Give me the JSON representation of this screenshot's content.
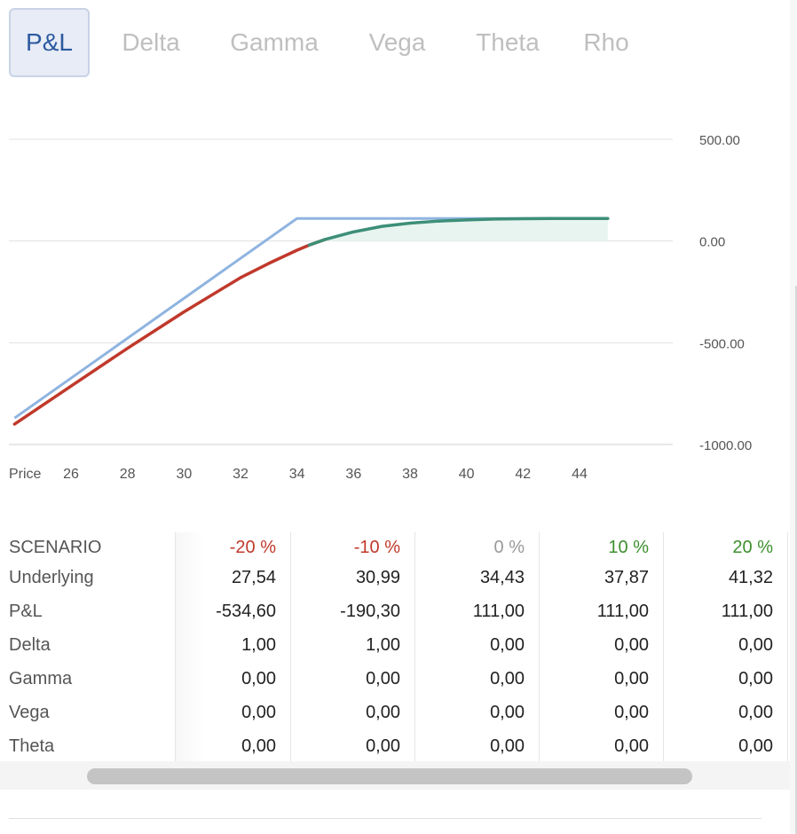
{
  "tabs": [
    "P&L",
    "Delta",
    "Gamma",
    "Vega",
    "Theta",
    "Rho"
  ],
  "active_tab": "P&L",
  "colors": {
    "tab_active_text": "#2c5aa0",
    "expiry_line": "#8fb4e0",
    "curve_negative": "#c0392b",
    "curve_positive": "#3d8f78",
    "fill_positive": "#e8f4ef",
    "grid": "#e0e0e0",
    "neg_pct": "#c0392b",
    "zero_pct": "#999999",
    "pos_pct": "#3d8f2e"
  },
  "chart_data": {
    "type": "line",
    "xlabel": "Price",
    "x_ticks": [
      26,
      28,
      30,
      32,
      34,
      36,
      38,
      40,
      42,
      44
    ],
    "y_ticks": [
      "500.00",
      "0.00",
      "-500.00",
      "-1000.00"
    ],
    "xlim": [
      23.8,
      47.3
    ],
    "ylim": [
      -1000,
      500
    ],
    "grid": true,
    "series": [
      {
        "role": "at expiration",
        "points": [
          [
            24,
            -870
          ],
          [
            34,
            111
          ],
          [
            45,
            111
          ]
        ]
      },
      {
        "role": "current",
        "points": [
          [
            24,
            -900
          ],
          [
            26,
            -713
          ],
          [
            28,
            -527
          ],
          [
            30,
            -348
          ],
          [
            32,
            -180
          ],
          [
            33,
            -110
          ],
          [
            34,
            -45
          ],
          [
            34.43,
            -20
          ],
          [
            35,
            8
          ],
          [
            36,
            45
          ],
          [
            37,
            72
          ],
          [
            38,
            88
          ],
          [
            39,
            98
          ],
          [
            40,
            104
          ],
          [
            41,
            108
          ],
          [
            42,
            110
          ],
          [
            43,
            111
          ],
          [
            44,
            111
          ],
          [
            45,
            111
          ]
        ]
      }
    ]
  },
  "table": {
    "header_label": "SCENARIO",
    "columns": [
      "-20 %",
      "-10 %",
      "0 %",
      "10 %",
      "20 %"
    ],
    "rows": [
      {
        "label": "Underlying",
        "values": [
          "27,54",
          "30,99",
          "34,43",
          "37,87",
          "41,32"
        ]
      },
      {
        "label": "P&L",
        "values": [
          "-534,60",
          "-190,30",
          "111,00",
          "111,00",
          "111,00"
        ]
      },
      {
        "label": "Delta",
        "values": [
          "1,00",
          "1,00",
          "0,00",
          "0,00",
          "0,00"
        ]
      },
      {
        "label": "Gamma",
        "values": [
          "0,00",
          "0,00",
          "0,00",
          "0,00",
          "0,00"
        ]
      },
      {
        "label": "Vega",
        "values": [
          "0,00",
          "0,00",
          "0,00",
          "0,00",
          "0,00"
        ]
      },
      {
        "label": "Theta",
        "values": [
          "0,00",
          "0,00",
          "0,00",
          "0,00",
          "0,00"
        ]
      }
    ]
  }
}
